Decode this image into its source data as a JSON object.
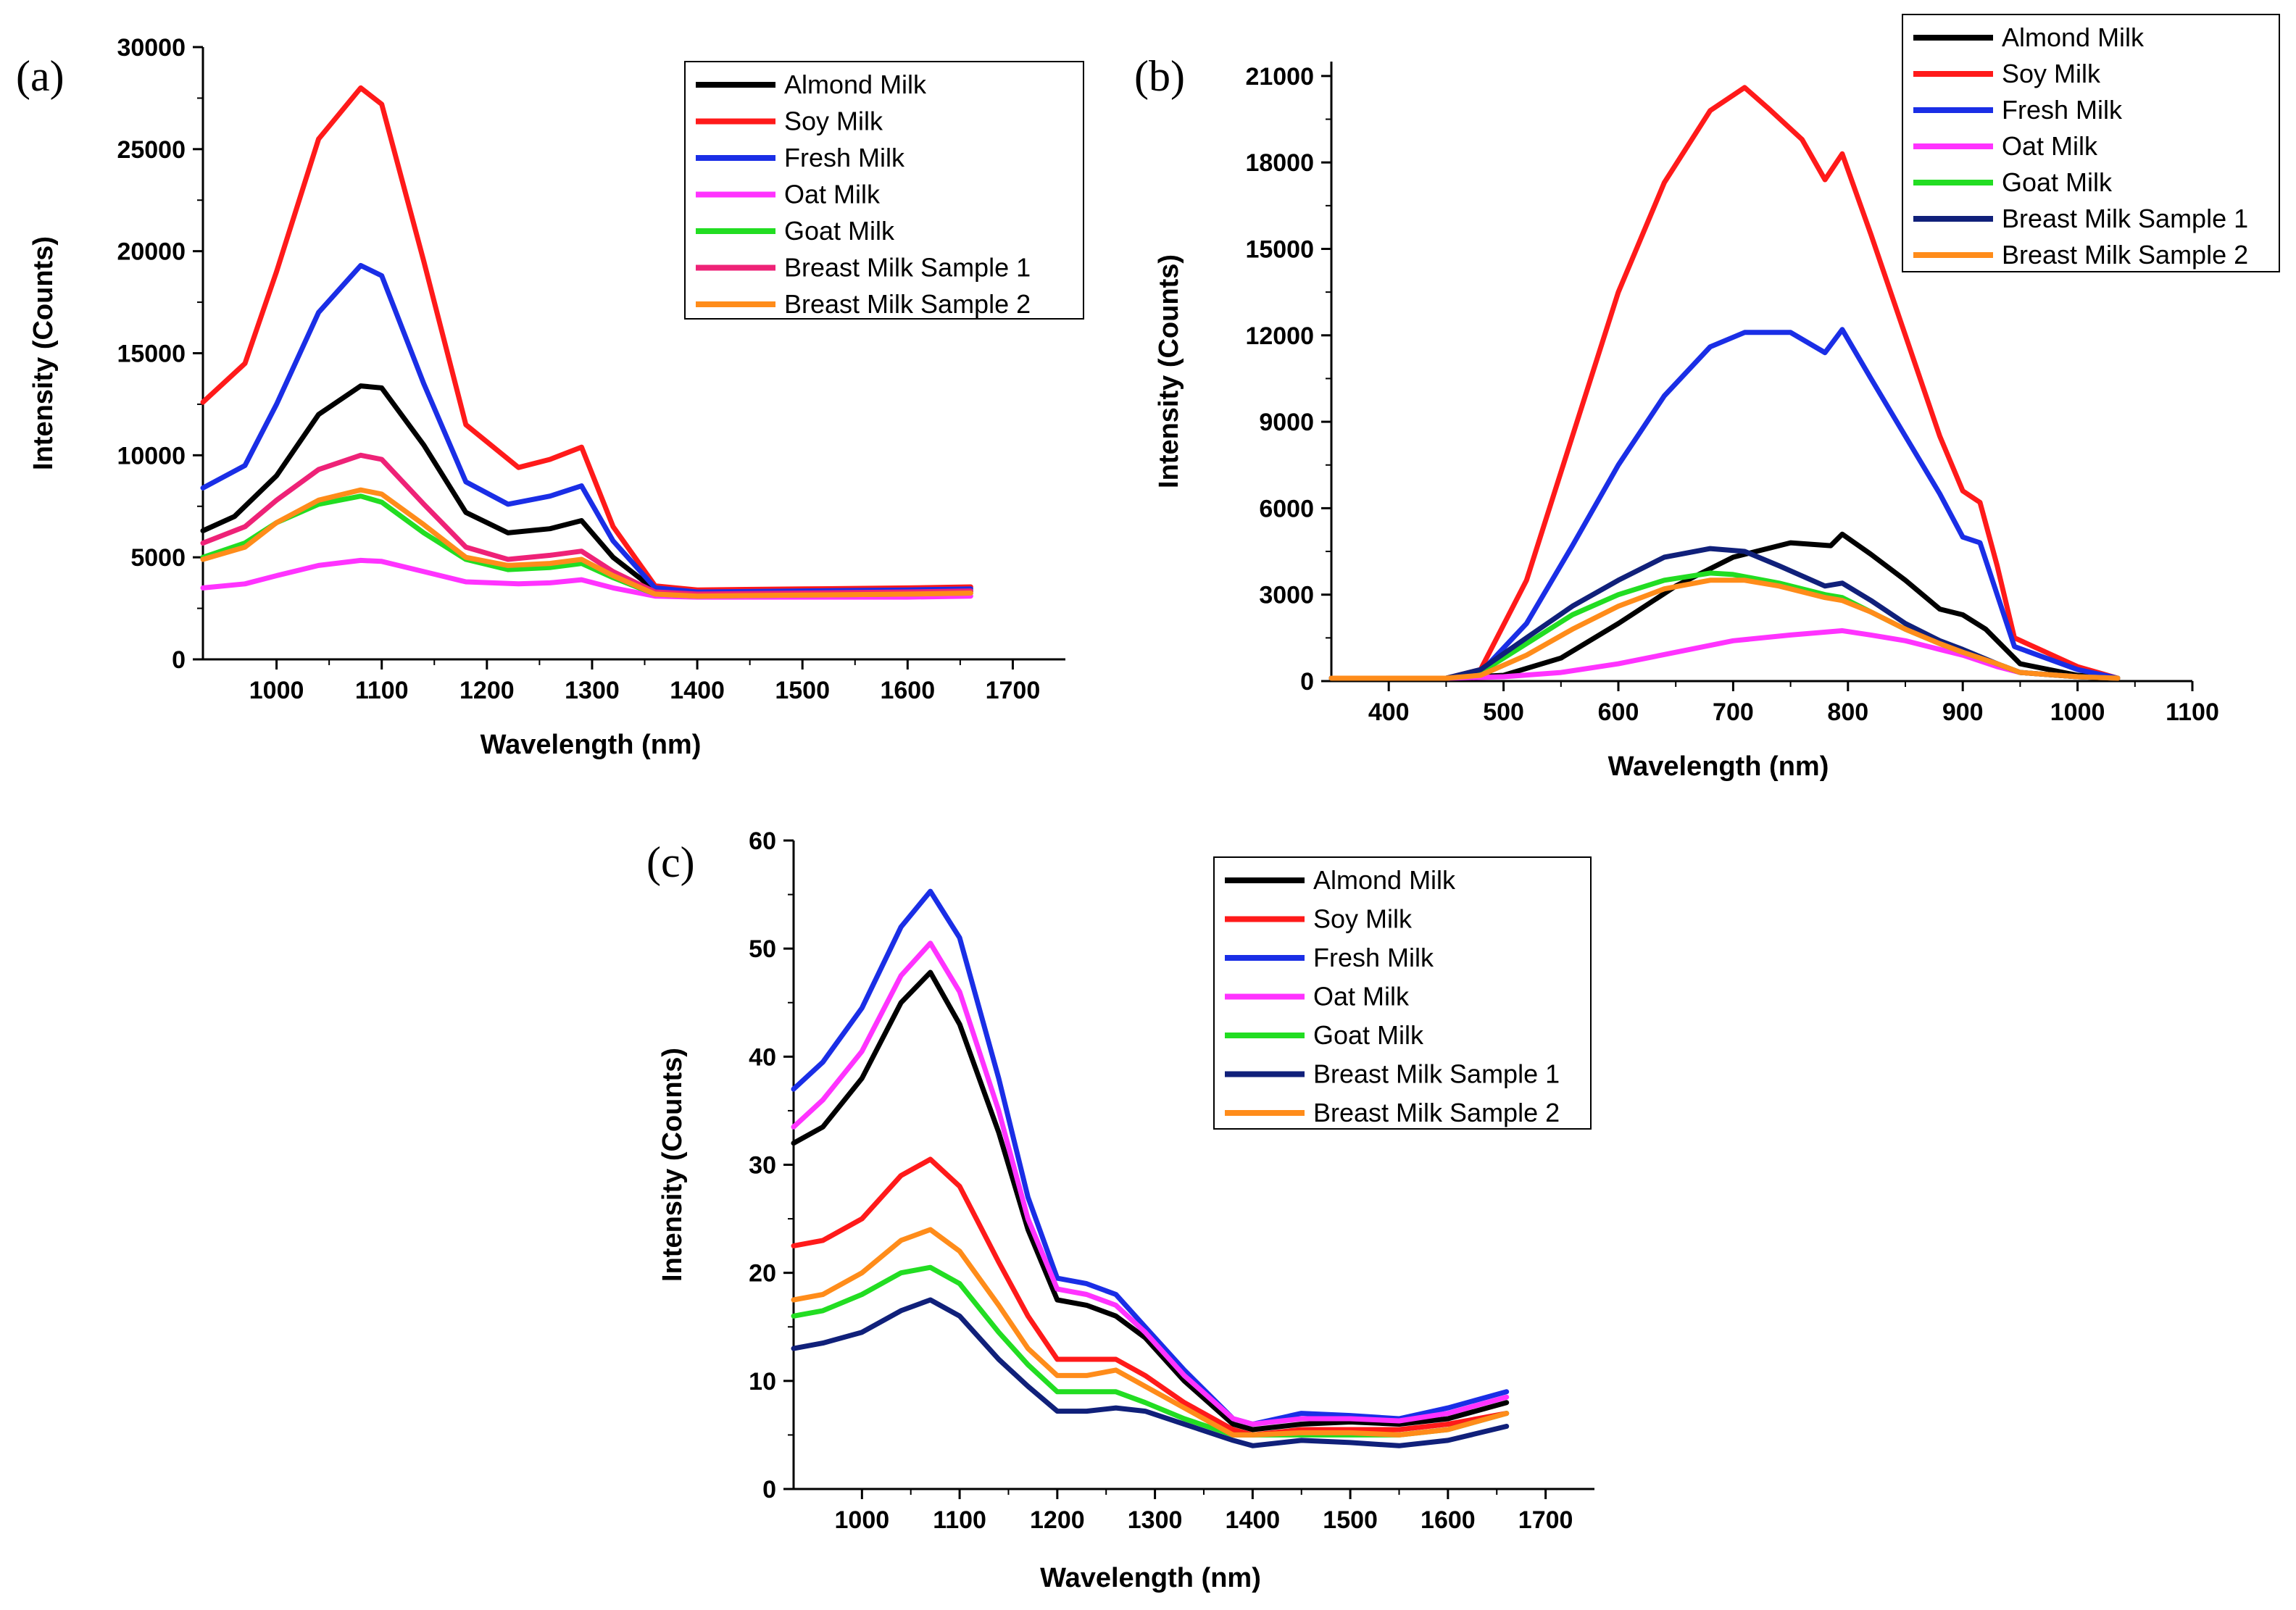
{
  "chart_data": [
    {
      "id": "a",
      "type": "line",
      "panel_label": "(a)",
      "xlabel": "Wavelength (nm)",
      "ylabel": "Intensity (Counts)",
      "xlim": [
        930,
        1750
      ],
      "ylim": [
        0,
        30000
      ],
      "xticks": [
        1000,
        1100,
        1200,
        1300,
        1400,
        1500,
        1600,
        1700
      ],
      "yticks": [
        0,
        5000,
        10000,
        15000,
        20000,
        25000,
        30000
      ],
      "series": [
        {
          "name": "Almond Milk",
          "color": "#000000",
          "x": [
            930,
            960,
            1000,
            1040,
            1080,
            1100,
            1140,
            1180,
            1220,
            1260,
            1290,
            1320,
            1360,
            1400,
            1500,
            1600,
            1660
          ],
          "y": [
            6300,
            7000,
            9000,
            12000,
            13400,
            13300,
            10500,
            7200,
            6200,
            6400,
            6800,
            5000,
            3400,
            3200,
            3250,
            3300,
            3350
          ]
        },
        {
          "name": "Soy Milk",
          "color": "#ff1a1a",
          "x": [
            930,
            970,
            1000,
            1040,
            1080,
            1100,
            1140,
            1180,
            1230,
            1260,
            1290,
            1320,
            1360,
            1400,
            1500,
            1600,
            1660
          ],
          "y": [
            12600,
            14500,
            19000,
            25500,
            28000,
            27200,
            19500,
            11500,
            9400,
            9800,
            10400,
            6500,
            3600,
            3400,
            3450,
            3500,
            3550
          ]
        },
        {
          "name": "Fresh Milk",
          "color": "#1a2ee6",
          "x": [
            930,
            970,
            1000,
            1040,
            1080,
            1100,
            1140,
            1180,
            1220,
            1260,
            1290,
            1320,
            1360,
            1400,
            1500,
            1600,
            1660
          ],
          "y": [
            8400,
            9500,
            12500,
            17000,
            19300,
            18800,
            13500,
            8700,
            7600,
            8000,
            8500,
            5800,
            3500,
            3300,
            3350,
            3400,
            3450
          ]
        },
        {
          "name": "Oat Milk",
          "color": "#ff33ff",
          "x": [
            930,
            970,
            1000,
            1040,
            1080,
            1100,
            1140,
            1180,
            1230,
            1260,
            1290,
            1320,
            1360,
            1400,
            1500,
            1600,
            1660
          ],
          "y": [
            3500,
            3700,
            4100,
            4600,
            4850,
            4800,
            4300,
            3800,
            3700,
            3750,
            3900,
            3500,
            3100,
            3050,
            3050,
            3050,
            3100
          ]
        },
        {
          "name": "Goat Milk",
          "color": "#22dd22",
          "x": [
            930,
            970,
            1000,
            1040,
            1080,
            1100,
            1140,
            1180,
            1220,
            1260,
            1290,
            1320,
            1360,
            1400,
            1500,
            1600,
            1660
          ],
          "y": [
            5000,
            5700,
            6700,
            7600,
            8000,
            7700,
            6200,
            4900,
            4400,
            4500,
            4700,
            4000,
            3200,
            3100,
            3150,
            3200,
            3250
          ]
        },
        {
          "name": "Breast Milk Sample 1",
          "color": "#ee2277",
          "x": [
            930,
            970,
            1000,
            1040,
            1080,
            1100,
            1140,
            1180,
            1220,
            1260,
            1290,
            1320,
            1360,
            1400,
            1500,
            1600,
            1660
          ],
          "y": [
            5700,
            6500,
            7800,
            9300,
            10000,
            9800,
            7600,
            5500,
            4900,
            5100,
            5300,
            4300,
            3300,
            3200,
            3250,
            3300,
            3350
          ]
        },
        {
          "name": "Breast Milk Sample 2",
          "color": "#ff8c1a",
          "x": [
            930,
            970,
            1000,
            1040,
            1080,
            1100,
            1140,
            1180,
            1220,
            1260,
            1290,
            1320,
            1360,
            1400,
            1500,
            1600,
            1660
          ],
          "y": [
            4900,
            5500,
            6700,
            7800,
            8300,
            8100,
            6600,
            5000,
            4600,
            4700,
            4900,
            4100,
            3200,
            3100,
            3150,
            3200,
            3250
          ]
        }
      ]
    },
    {
      "id": "b",
      "type": "line",
      "panel_label": "(b)",
      "xlabel": "Wavelength (nm)",
      "ylabel": "Intensity (Counts)",
      "xlim": [
        350,
        1100
      ],
      "ylim": [
        0,
        21500
      ],
      "xticks": [
        400,
        500,
        600,
        700,
        800,
        900,
        1000,
        1100
      ],
      "yticks": [
        0,
        3000,
        6000,
        9000,
        12000,
        15000,
        18000,
        21000
      ],
      "series": [
        {
          "name": "Almond Milk",
          "color": "#000000",
          "x": [
            350,
            450,
            500,
            550,
            600,
            650,
            700,
            750,
            785,
            795,
            820,
            850,
            880,
            900,
            920,
            950,
            1000,
            1035
          ],
          "y": [
            100,
            100,
            200,
            800,
            2000,
            3300,
            4300,
            4800,
            4700,
            5100,
            4400,
            3500,
            2500,
            2300,
            1800,
            600,
            200,
            100
          ]
        },
        {
          "name": "Soy Milk",
          "color": "#ff1a1a",
          "x": [
            350,
            450,
            480,
            520,
            560,
            600,
            640,
            680,
            710,
            730,
            760,
            780,
            795,
            820,
            850,
            880,
            900,
            915,
            930,
            945,
            1000,
            1035
          ],
          "y": [
            100,
            100,
            400,
            3500,
            8500,
            13500,
            17300,
            19800,
            20600,
            19900,
            18800,
            17400,
            18300,
            15500,
            12000,
            8500,
            6600,
            6200,
            4000,
            1500,
            500,
            100
          ]
        },
        {
          "name": "Fresh Milk",
          "color": "#1a2ee6",
          "x": [
            350,
            450,
            480,
            520,
            560,
            600,
            640,
            680,
            710,
            750,
            780,
            795,
            820,
            850,
            880,
            900,
            915,
            930,
            945,
            1000,
            1035
          ],
          "y": [
            100,
            100,
            300,
            2000,
            4700,
            7500,
            9900,
            11600,
            12100,
            12100,
            11400,
            12200,
            10500,
            8500,
            6500,
            5000,
            4800,
            3000,
            1200,
            400,
            100
          ]
        },
        {
          "name": "Oat Milk",
          "color": "#ff33ff",
          "x": [
            350,
            450,
            500,
            550,
            600,
            650,
            700,
            750,
            795,
            820,
            850,
            880,
            900,
            930,
            950,
            1000,
            1035
          ],
          "y": [
            100,
            100,
            150,
            300,
            600,
            1000,
            1400,
            1600,
            1750,
            1600,
            1400,
            1100,
            900,
            500,
            300,
            150,
            100
          ]
        },
        {
          "name": "Goat Milk",
          "color": "#22dd22",
          "x": [
            350,
            450,
            480,
            520,
            560,
            600,
            640,
            680,
            700,
            740,
            780,
            795,
            820,
            850,
            880,
            900,
            930,
            950,
            1000,
            1035
          ],
          "y": [
            100,
            100,
            300,
            1300,
            2300,
            3000,
            3500,
            3750,
            3700,
            3400,
            3000,
            2900,
            2400,
            1800,
            1300,
            1000,
            600,
            300,
            150,
            100
          ]
        },
        {
          "name": "Breast Milk Sample 1",
          "color": "#10207a",
          "x": [
            350,
            450,
            480,
            520,
            560,
            600,
            640,
            680,
            710,
            740,
            780,
            795,
            820,
            850,
            880,
            900,
            930,
            950,
            1000,
            1035
          ],
          "y": [
            100,
            100,
            400,
            1500,
            2600,
            3500,
            4300,
            4600,
            4500,
            4000,
            3300,
            3400,
            2800,
            2000,
            1400,
            1100,
            600,
            300,
            150,
            100
          ]
        },
        {
          "name": "Breast Milk Sample 2",
          "color": "#ff8c1a",
          "x": [
            350,
            450,
            480,
            520,
            560,
            600,
            640,
            680,
            710,
            740,
            780,
            795,
            820,
            850,
            880,
            900,
            930,
            950,
            1000,
            1035
          ],
          "y": [
            100,
            100,
            200,
            900,
            1800,
            2600,
            3200,
            3500,
            3500,
            3300,
            2900,
            2800,
            2400,
            1800,
            1300,
            1000,
            600,
            300,
            150,
            100
          ]
        }
      ]
    },
    {
      "id": "c",
      "type": "line",
      "panel_label": "(c)",
      "xlabel": "Wavelength (nm)",
      "ylabel": "Intensity (Counts)",
      "xlim": [
        930,
        1750
      ],
      "ylim": [
        0,
        60
      ],
      "xticks": [
        1000,
        1100,
        1200,
        1300,
        1400,
        1500,
        1600,
        1700
      ],
      "yticks": [
        0,
        10,
        20,
        30,
        40,
        50,
        60
      ],
      "series": [
        {
          "name": "Almond Milk",
          "color": "#000000",
          "x": [
            930,
            960,
            1000,
            1040,
            1070,
            1100,
            1140,
            1170,
            1200,
            1230,
            1260,
            1290,
            1330,
            1380,
            1400,
            1450,
            1500,
            1550,
            1600,
            1660
          ],
          "y": [
            32,
            33.5,
            38,
            45,
            47.8,
            43,
            33,
            24,
            17.5,
            17,
            16,
            14,
            10,
            6,
            5.5,
            6,
            6.2,
            6,
            6.5,
            8
          ]
        },
        {
          "name": "Soy Milk",
          "color": "#ff1a1a",
          "x": [
            930,
            960,
            1000,
            1040,
            1070,
            1100,
            1140,
            1170,
            1200,
            1230,
            1260,
            1290,
            1330,
            1380,
            1400,
            1450,
            1500,
            1550,
            1600,
            1660
          ],
          "y": [
            22.5,
            23,
            25,
            29,
            30.5,
            28,
            21,
            16,
            12,
            12,
            12,
            10.5,
            8,
            5.5,
            5,
            5.5,
            5.5,
            5.5,
            6,
            7
          ]
        },
        {
          "name": "Fresh Milk",
          "color": "#1a2ee6",
          "x": [
            930,
            960,
            1000,
            1040,
            1070,
            1100,
            1140,
            1170,
            1200,
            1230,
            1260,
            1290,
            1330,
            1380,
            1400,
            1450,
            1500,
            1550,
            1600,
            1660
          ],
          "y": [
            37,
            39.5,
            44.5,
            52,
            55.3,
            51,
            38,
            27,
            19.5,
            19,
            18,
            15,
            11,
            6.5,
            6,
            7,
            6.8,
            6.5,
            7.5,
            9
          ]
        },
        {
          "name": "Oat Milk",
          "color": "#ff33ff",
          "x": [
            930,
            960,
            1000,
            1040,
            1070,
            1100,
            1140,
            1170,
            1200,
            1230,
            1260,
            1290,
            1330,
            1380,
            1400,
            1450,
            1500,
            1550,
            1600,
            1660
          ],
          "y": [
            33.5,
            36,
            40.5,
            47.5,
            50.5,
            46,
            35,
            25,
            18.5,
            18,
            17,
            14.5,
            10.5,
            6.5,
            6,
            6.5,
            6.5,
            6.3,
            7,
            8.5
          ]
        },
        {
          "name": "Goat Milk",
          "color": "#22dd22",
          "x": [
            930,
            960,
            1000,
            1040,
            1070,
            1100,
            1140,
            1170,
            1200,
            1230,
            1260,
            1290,
            1330,
            1380,
            1400,
            1450,
            1500,
            1550,
            1600,
            1660
          ],
          "y": [
            16,
            16.5,
            18,
            20,
            20.5,
            19,
            14.5,
            11.5,
            9,
            9,
            9,
            8,
            6.5,
            5,
            5,
            5,
            5,
            5,
            5.5,
            7
          ]
        },
        {
          "name": "Breast Milk Sample 1",
          "color": "#10207a",
          "x": [
            930,
            960,
            1000,
            1040,
            1070,
            1100,
            1140,
            1170,
            1200,
            1230,
            1260,
            1290,
            1330,
            1380,
            1400,
            1450,
            1500,
            1550,
            1600,
            1660
          ],
          "y": [
            13,
            13.5,
            14.5,
            16.5,
            17.5,
            16,
            12,
            9.5,
            7.2,
            7.2,
            7.5,
            7.2,
            6,
            4.5,
            4,
            4.5,
            4.3,
            4,
            4.5,
            5.8
          ]
        },
        {
          "name": "Breast Milk Sample 2",
          "color": "#ff8c1a",
          "x": [
            930,
            960,
            1000,
            1040,
            1070,
            1100,
            1140,
            1170,
            1200,
            1230,
            1260,
            1290,
            1330,
            1380,
            1400,
            1450,
            1500,
            1550,
            1600,
            1660
          ],
          "y": [
            17.5,
            18,
            20,
            23,
            24,
            22,
            17,
            13,
            10.5,
            10.5,
            11,
            9.5,
            7.5,
            5,
            5,
            5.2,
            5.2,
            5,
            5.5,
            7
          ]
        }
      ]
    }
  ]
}
